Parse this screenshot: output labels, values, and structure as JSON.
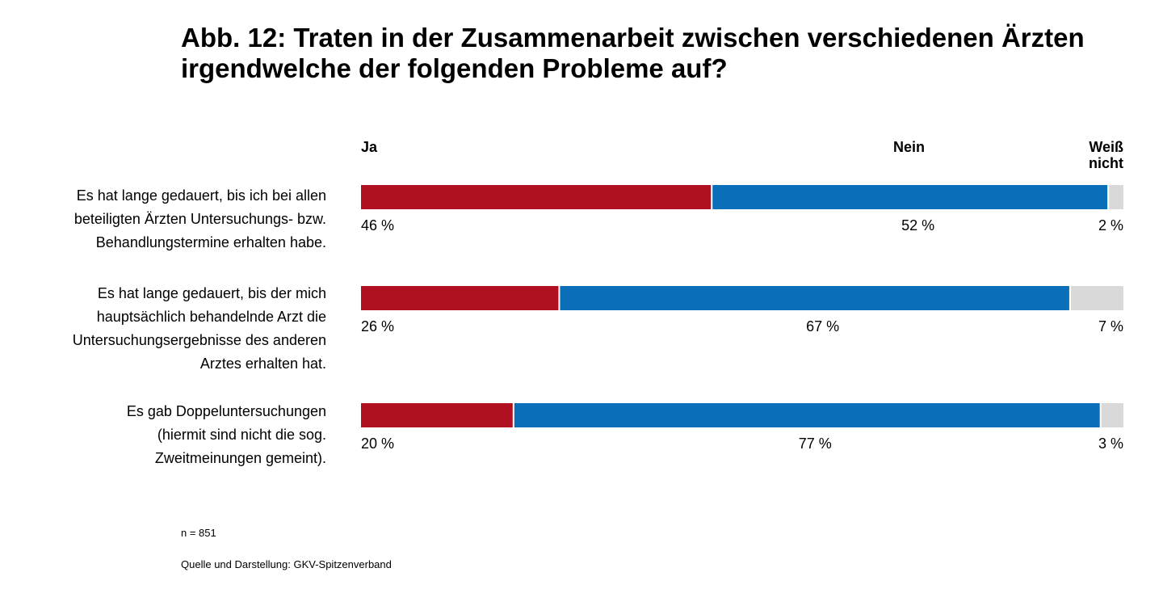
{
  "chart_data": {
    "type": "bar",
    "orientation": "horizontal",
    "stacked": true,
    "title": "Abb. 12: Traten in der Zusammenarbeit zwischen verschiedenen Ärzten irgendwelche der folgenden Probleme auf?",
    "categories": [
      "Es hat lange gedauert, bis ich bei allen beteiligten Ärzten Untersuchungs- bzw. Behandlungstermine erhalten habe.",
      "Es hat lange gedauert, bis der mich hauptsächlich behandelnde Arzt die Untersuchungsergebnisse des anderen Arztes erhalten hat.",
      "Es gab Doppeluntersuchungen (hiermit sind nicht die sog. Zweitmeinungen gemeint)."
    ],
    "series": [
      {
        "name": "Ja",
        "color": "#b01020",
        "values": [
          46,
          26,
          20
        ],
        "labels": [
          "46 %",
          "26 %",
          "20 %"
        ]
      },
      {
        "name": "Nein",
        "color": "#0a6fb8",
        "values": [
          52,
          67,
          77
        ],
        "labels": [
          "52 %",
          "67 %",
          "77 %"
        ]
      },
      {
        "name": "Weiß nicht",
        "color": "#d9d9d9",
        "values": [
          2,
          7,
          3
        ],
        "labels": [
          "2 %",
          "7 %",
          "3 %"
        ]
      }
    ],
    "xlim": [
      0,
      100
    ],
    "legend_position": "top",
    "grid": false
  },
  "legend": {
    "ja": "Ja",
    "nein": "Nein",
    "weiss_line1": "Weiß",
    "weiss_line2": "nicht"
  },
  "labels": {
    "q1": [
      "Es hat lange gedauert, bis ich bei allen",
      "beteiligten Ärzten Untersuchungs- bzw.",
      "Behandlungstermine erhalten habe."
    ],
    "q2": [
      "Es hat lange gedauert, bis der mich",
      "hauptsächlich behandelnde Arzt die",
      "Untersuchungsergebnisse des anderen",
      "Arztes erhalten hat."
    ],
    "q3": [
      "Es gab Doppeluntersuchungen",
      "(hiermit sind nicht die sog.",
      "Zweitmeinungen gemeint)."
    ]
  },
  "notes": {
    "n": "n = 851",
    "source": "Quelle und Darstellung: GKV-Spitzenverband"
  }
}
